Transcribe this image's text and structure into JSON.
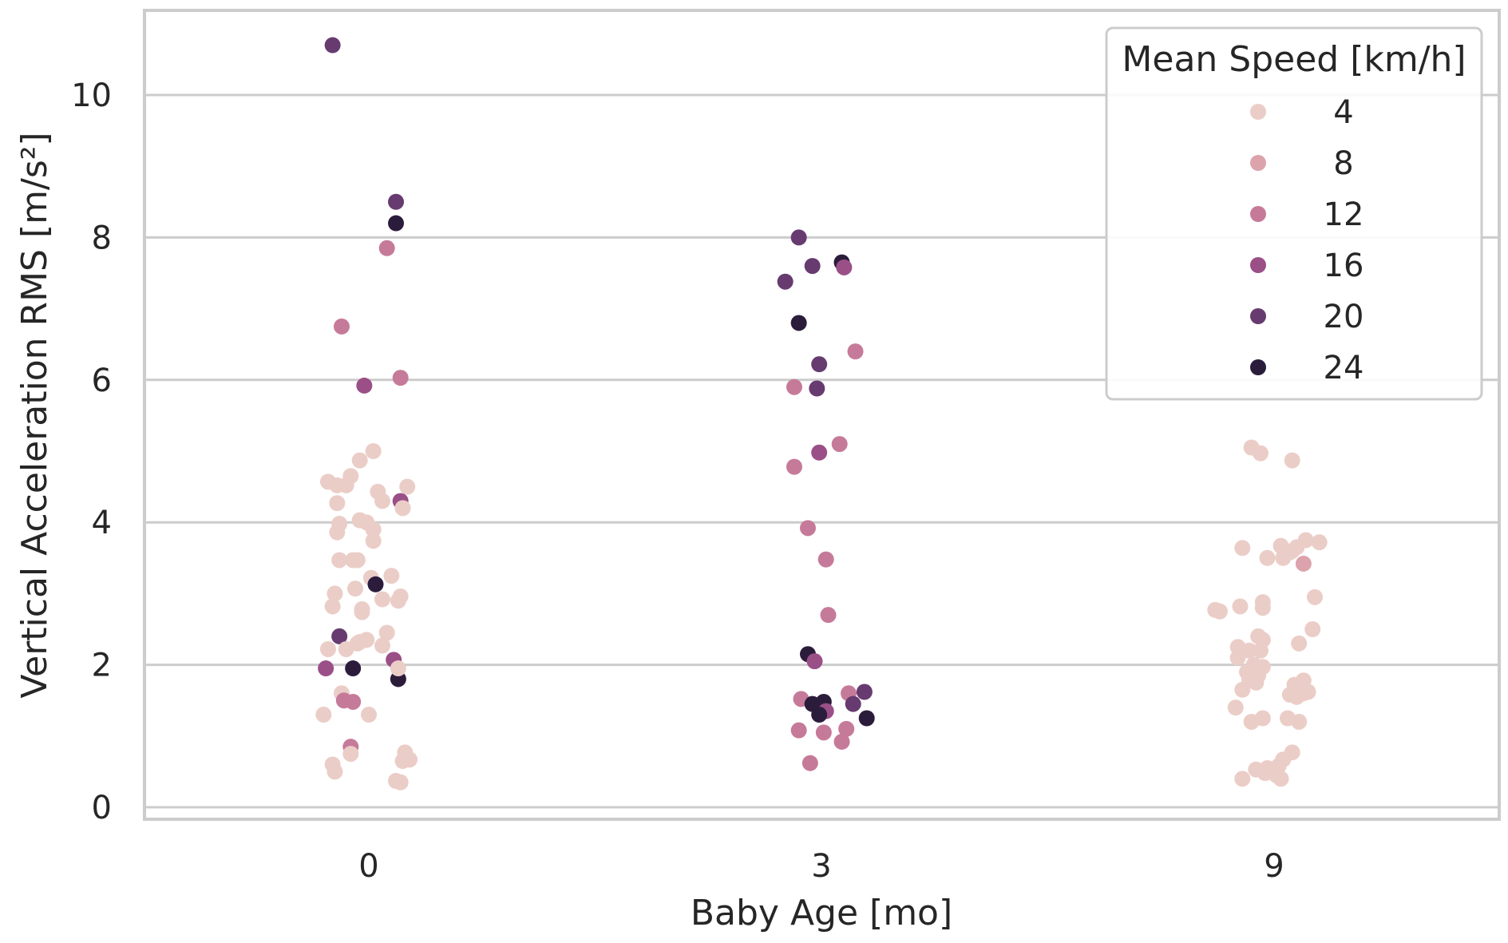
{
  "chart_data": {
    "type": "scatter",
    "xlabel": "Baby Age [mo]",
    "ylabel": "Vertical Acceleration RMS [m/s²]",
    "categories": [
      "0",
      "3",
      "9"
    ],
    "ylim": [
      -0.2,
      11.2
    ],
    "yticks": [
      0,
      2,
      4,
      6,
      8,
      10
    ],
    "grid": true,
    "hue": {
      "title": "Mean Speed [km/h]",
      "levels": [
        4,
        8,
        12,
        16,
        20,
        24
      ],
      "colors": [
        "#ebcdc7",
        "#dca3ad",
        "#c67a99",
        "#9a4f87",
        "#673b70",
        "#2b1c3c"
      ]
    },
    "legend_position": "top-right",
    "points": [
      {
        "age": "0",
        "offset": -0.08,
        "y": 10.7,
        "speed": 20
      },
      {
        "age": "0",
        "offset": 0.06,
        "y": 8.5,
        "speed": 20
      },
      {
        "age": "0",
        "offset": 0.06,
        "y": 8.2,
        "speed": 24
      },
      {
        "age": "0",
        "offset": 0.04,
        "y": 7.85,
        "speed": 12
      },
      {
        "age": "0",
        "offset": -0.06,
        "y": 6.75,
        "speed": 12
      },
      {
        "age": "0",
        "offset": -0.01,
        "y": 5.92,
        "speed": 16
      },
      {
        "age": "0",
        "offset": 0.07,
        "y": 6.03,
        "speed": 12
      },
      {
        "age": "0",
        "offset": 0.01,
        "y": 5.0,
        "speed": 4
      },
      {
        "age": "0",
        "offset": -0.02,
        "y": 4.87,
        "speed": 4
      },
      {
        "age": "0",
        "offset": -0.09,
        "y": 4.57,
        "speed": 4
      },
      {
        "age": "0",
        "offset": -0.07,
        "y": 4.52,
        "speed": 4
      },
      {
        "age": "0",
        "offset": -0.04,
        "y": 4.65,
        "speed": 4
      },
      {
        "age": "0",
        "offset": -0.05,
        "y": 4.52,
        "speed": 4
      },
      {
        "age": "0",
        "offset": 0.02,
        "y": 4.43,
        "speed": 4
      },
      {
        "age": "0",
        "offset": 0.03,
        "y": 4.3,
        "speed": 4
      },
      {
        "age": "0",
        "offset": 0.085,
        "y": 4.5,
        "speed": 4
      },
      {
        "age": "0",
        "offset": 0.07,
        "y": 4.3,
        "speed": 16
      },
      {
        "age": "0",
        "offset": 0.075,
        "y": 4.2,
        "speed": 4
      },
      {
        "age": "0",
        "offset": -0.07,
        "y": 4.27,
        "speed": 4
      },
      {
        "age": "0",
        "offset": -0.02,
        "y": 4.03,
        "speed": 4
      },
      {
        "age": "0",
        "offset": -0.005,
        "y": 4.0,
        "speed": 4
      },
      {
        "age": "0",
        "offset": -0.065,
        "y": 3.98,
        "speed": 4
      },
      {
        "age": "0",
        "offset": -0.07,
        "y": 3.86,
        "speed": 4
      },
      {
        "age": "0",
        "offset": 0.01,
        "y": 3.9,
        "speed": 4
      },
      {
        "age": "0",
        "offset": 0.01,
        "y": 3.74,
        "speed": 4
      },
      {
        "age": "0",
        "offset": -0.065,
        "y": 3.47,
        "speed": 4
      },
      {
        "age": "0",
        "offset": -0.035,
        "y": 3.47,
        "speed": 4
      },
      {
        "age": "0",
        "offset": -0.025,
        "y": 3.47,
        "speed": 4
      },
      {
        "age": "0",
        "offset": 0.05,
        "y": 3.25,
        "speed": 4
      },
      {
        "age": "0",
        "offset": 0.005,
        "y": 3.22,
        "speed": 4
      },
      {
        "age": "0",
        "offset": 0.015,
        "y": 3.13,
        "speed": 24
      },
      {
        "age": "0",
        "offset": -0.03,
        "y": 3.07,
        "speed": 4
      },
      {
        "age": "0",
        "offset": -0.075,
        "y": 3.0,
        "speed": 4
      },
      {
        "age": "0",
        "offset": 0.03,
        "y": 2.92,
        "speed": 4
      },
      {
        "age": "0",
        "offset": 0.07,
        "y": 2.96,
        "speed": 4
      },
      {
        "age": "0",
        "offset": 0.065,
        "y": 2.9,
        "speed": 4
      },
      {
        "age": "0",
        "offset": -0.08,
        "y": 2.82,
        "speed": 4
      },
      {
        "age": "0",
        "offset": -0.015,
        "y": 2.78,
        "speed": 4
      },
      {
        "age": "0",
        "offset": -0.015,
        "y": 2.74,
        "speed": 4
      },
      {
        "age": "0",
        "offset": 0.04,
        "y": 2.45,
        "speed": 4
      },
      {
        "age": "0",
        "offset": -0.065,
        "y": 2.4,
        "speed": 20
      },
      {
        "age": "0",
        "offset": -0.005,
        "y": 2.35,
        "speed": 4
      },
      {
        "age": "0",
        "offset": -0.02,
        "y": 2.32,
        "speed": 4
      },
      {
        "age": "0",
        "offset": -0.025,
        "y": 2.3,
        "speed": 4
      },
      {
        "age": "0",
        "offset": 0.03,
        "y": 2.27,
        "speed": 4
      },
      {
        "age": "0",
        "offset": -0.09,
        "y": 2.22,
        "speed": 4
      },
      {
        "age": "0",
        "offset": -0.05,
        "y": 2.22,
        "speed": 4
      },
      {
        "age": "0",
        "offset": 0.055,
        "y": 2.07,
        "speed": 16
      },
      {
        "age": "0",
        "offset": -0.095,
        "y": 1.95,
        "speed": 16
      },
      {
        "age": "0",
        "offset": -0.035,
        "y": 1.95,
        "speed": 24
      },
      {
        "age": "0",
        "offset": 0.065,
        "y": 1.8,
        "speed": 24
      },
      {
        "age": "0",
        "offset": 0.065,
        "y": 1.95,
        "speed": 4
      },
      {
        "age": "0",
        "offset": -0.06,
        "y": 1.6,
        "speed": 4
      },
      {
        "age": "0",
        "offset": -0.055,
        "y": 1.5,
        "speed": 12
      },
      {
        "age": "0",
        "offset": -0.035,
        "y": 1.48,
        "speed": 12
      },
      {
        "age": "0",
        "offset": -0.1,
        "y": 1.3,
        "speed": 4
      },
      {
        "age": "0",
        "offset": 0.0,
        "y": 1.3,
        "speed": 4
      },
      {
        "age": "0",
        "offset": -0.04,
        "y": 0.85,
        "speed": 12
      },
      {
        "age": "0",
        "offset": -0.04,
        "y": 0.75,
        "speed": 4
      },
      {
        "age": "0",
        "offset": 0.08,
        "y": 0.77,
        "speed": 4
      },
      {
        "age": "0",
        "offset": 0.09,
        "y": 0.67,
        "speed": 4
      },
      {
        "age": "0",
        "offset": 0.075,
        "y": 0.65,
        "speed": 4
      },
      {
        "age": "0",
        "offset": -0.08,
        "y": 0.6,
        "speed": 4
      },
      {
        "age": "0",
        "offset": -0.075,
        "y": 0.5,
        "speed": 4
      },
      {
        "age": "0",
        "offset": 0.06,
        "y": 0.37,
        "speed": 4
      },
      {
        "age": "0",
        "offset": 0.07,
        "y": 0.35,
        "speed": 4
      },
      {
        "age": "3",
        "offset": -0.05,
        "y": 8.0,
        "speed": 20
      },
      {
        "age": "3",
        "offset": 0.045,
        "y": 7.65,
        "speed": 24
      },
      {
        "age": "3",
        "offset": -0.02,
        "y": 7.6,
        "speed": 20
      },
      {
        "age": "3",
        "offset": 0.05,
        "y": 7.58,
        "speed": 16
      },
      {
        "age": "3",
        "offset": -0.08,
        "y": 7.38,
        "speed": 20
      },
      {
        "age": "3",
        "offset": -0.05,
        "y": 6.8,
        "speed": 24
      },
      {
        "age": "3",
        "offset": 0.075,
        "y": 6.4,
        "speed": 12
      },
      {
        "age": "3",
        "offset": -0.005,
        "y": 6.22,
        "speed": 20
      },
      {
        "age": "3",
        "offset": -0.06,
        "y": 5.9,
        "speed": 12
      },
      {
        "age": "3",
        "offset": -0.01,
        "y": 5.88,
        "speed": 20
      },
      {
        "age": "3",
        "offset": 0.04,
        "y": 5.1,
        "speed": 12
      },
      {
        "age": "3",
        "offset": -0.005,
        "y": 4.98,
        "speed": 16
      },
      {
        "age": "3",
        "offset": -0.06,
        "y": 4.78,
        "speed": 12
      },
      {
        "age": "3",
        "offset": -0.03,
        "y": 3.92,
        "speed": 12
      },
      {
        "age": "3",
        "offset": 0.01,
        "y": 3.48,
        "speed": 12
      },
      {
        "age": "3",
        "offset": 0.015,
        "y": 2.7,
        "speed": 12
      },
      {
        "age": "3",
        "offset": -0.03,
        "y": 2.15,
        "speed": 24
      },
      {
        "age": "3",
        "offset": -0.015,
        "y": 2.05,
        "speed": 16
      },
      {
        "age": "3",
        "offset": 0.095,
        "y": 1.62,
        "speed": 20
      },
      {
        "age": "3",
        "offset": 0.06,
        "y": 1.6,
        "speed": 12
      },
      {
        "age": "3",
        "offset": -0.045,
        "y": 1.52,
        "speed": 12
      },
      {
        "age": "3",
        "offset": 0.005,
        "y": 1.48,
        "speed": 24
      },
      {
        "age": "3",
        "offset": -0.02,
        "y": 1.45,
        "speed": 24
      },
      {
        "age": "3",
        "offset": 0.07,
        "y": 1.45,
        "speed": 20
      },
      {
        "age": "3",
        "offset": 0.01,
        "y": 1.35,
        "speed": 16
      },
      {
        "age": "3",
        "offset": -0.005,
        "y": 1.3,
        "speed": 24
      },
      {
        "age": "3",
        "offset": 0.1,
        "y": 1.25,
        "speed": 24
      },
      {
        "age": "3",
        "offset": -0.05,
        "y": 1.08,
        "speed": 12
      },
      {
        "age": "3",
        "offset": 0.005,
        "y": 1.05,
        "speed": 12
      },
      {
        "age": "3",
        "offset": 0.055,
        "y": 1.1,
        "speed": 12
      },
      {
        "age": "3",
        "offset": 0.045,
        "y": 0.92,
        "speed": 12
      },
      {
        "age": "3",
        "offset": -0.025,
        "y": 0.62,
        "speed": 12
      },
      {
        "age": "9",
        "offset": -0.05,
        "y": 5.05,
        "speed": 4
      },
      {
        "age": "9",
        "offset": -0.03,
        "y": 4.97,
        "speed": 4
      },
      {
        "age": "9",
        "offset": 0.04,
        "y": 4.87,
        "speed": 4
      },
      {
        "age": "9",
        "offset": 0.07,
        "y": 3.75,
        "speed": 4
      },
      {
        "age": "9",
        "offset": 0.1,
        "y": 3.72,
        "speed": 4
      },
      {
        "age": "9",
        "offset": 0.015,
        "y": 3.67,
        "speed": 4
      },
      {
        "age": "9",
        "offset": 0.05,
        "y": 3.65,
        "speed": 4
      },
      {
        "age": "9",
        "offset": -0.07,
        "y": 3.64,
        "speed": 4
      },
      {
        "age": "9",
        "offset": 0.04,
        "y": 3.6,
        "speed": 4
      },
      {
        "age": "9",
        "offset": -0.015,
        "y": 3.5,
        "speed": 4
      },
      {
        "age": "9",
        "offset": 0.02,
        "y": 3.5,
        "speed": 4
      },
      {
        "age": "9",
        "offset": 0.035,
        "y": 3.58,
        "speed": 4
      },
      {
        "age": "9",
        "offset": 0.065,
        "y": 3.42,
        "speed": 8
      },
      {
        "age": "9",
        "offset": 0.09,
        "y": 2.95,
        "speed": 4
      },
      {
        "age": "9",
        "offset": -0.025,
        "y": 2.88,
        "speed": 4
      },
      {
        "age": "9",
        "offset": -0.075,
        "y": 2.82,
        "speed": 4
      },
      {
        "age": "9",
        "offset": -0.025,
        "y": 2.8,
        "speed": 4
      },
      {
        "age": "9",
        "offset": -0.13,
        "y": 2.77,
        "speed": 4
      },
      {
        "age": "9",
        "offset": -0.12,
        "y": 2.75,
        "speed": 4
      },
      {
        "age": "9",
        "offset": 0.085,
        "y": 2.5,
        "speed": 4
      },
      {
        "age": "9",
        "offset": -0.035,
        "y": 2.4,
        "speed": 4
      },
      {
        "age": "9",
        "offset": -0.025,
        "y": 2.35,
        "speed": 4
      },
      {
        "age": "9",
        "offset": 0.055,
        "y": 2.3,
        "speed": 4
      },
      {
        "age": "9",
        "offset": -0.08,
        "y": 2.25,
        "speed": 4
      },
      {
        "age": "9",
        "offset": -0.055,
        "y": 2.2,
        "speed": 4
      },
      {
        "age": "9",
        "offset": -0.03,
        "y": 2.2,
        "speed": 4
      },
      {
        "age": "9",
        "offset": -0.08,
        "y": 2.1,
        "speed": 4
      },
      {
        "age": "9",
        "offset": -0.045,
        "y": 2.0,
        "speed": 4
      },
      {
        "age": "9",
        "offset": -0.025,
        "y": 1.97,
        "speed": 4
      },
      {
        "age": "9",
        "offset": -0.06,
        "y": 1.9,
        "speed": 4
      },
      {
        "age": "9",
        "offset": -0.035,
        "y": 1.85,
        "speed": 4
      },
      {
        "age": "9",
        "offset": -0.055,
        "y": 1.8,
        "speed": 4
      },
      {
        "age": "9",
        "offset": -0.04,
        "y": 1.75,
        "speed": 4
      },
      {
        "age": "9",
        "offset": 0.065,
        "y": 1.78,
        "speed": 4
      },
      {
        "age": "9",
        "offset": 0.045,
        "y": 1.72,
        "speed": 4
      },
      {
        "age": "9",
        "offset": -0.07,
        "y": 1.65,
        "speed": 4
      },
      {
        "age": "9",
        "offset": 0.075,
        "y": 1.62,
        "speed": 4
      },
      {
        "age": "9",
        "offset": 0.065,
        "y": 1.6,
        "speed": 4
      },
      {
        "age": "9",
        "offset": 0.035,
        "y": 1.58,
        "speed": 4
      },
      {
        "age": "9",
        "offset": 0.05,
        "y": 1.55,
        "speed": 4
      },
      {
        "age": "9",
        "offset": -0.085,
        "y": 1.4,
        "speed": 4
      },
      {
        "age": "9",
        "offset": -0.025,
        "y": 1.25,
        "speed": 4
      },
      {
        "age": "9",
        "offset": -0.05,
        "y": 1.2,
        "speed": 4
      },
      {
        "age": "9",
        "offset": 0.03,
        "y": 1.25,
        "speed": 4
      },
      {
        "age": "9",
        "offset": 0.055,
        "y": 1.2,
        "speed": 4
      },
      {
        "age": "9",
        "offset": 0.04,
        "y": 0.77,
        "speed": 4
      },
      {
        "age": "9",
        "offset": 0.02,
        "y": 0.67,
        "speed": 4
      },
      {
        "age": "9",
        "offset": 0.01,
        "y": 0.58,
        "speed": 4
      },
      {
        "age": "9",
        "offset": -0.015,
        "y": 0.55,
        "speed": 4
      },
      {
        "age": "9",
        "offset": -0.04,
        "y": 0.53,
        "speed": 4
      },
      {
        "age": "9",
        "offset": -0.02,
        "y": 0.48,
        "speed": 4
      },
      {
        "age": "9",
        "offset": 0.005,
        "y": 0.45,
        "speed": 4
      },
      {
        "age": "9",
        "offset": -0.07,
        "y": 0.4,
        "speed": 4
      },
      {
        "age": "9",
        "offset": 0.015,
        "y": 0.4,
        "speed": 4
      }
    ]
  }
}
